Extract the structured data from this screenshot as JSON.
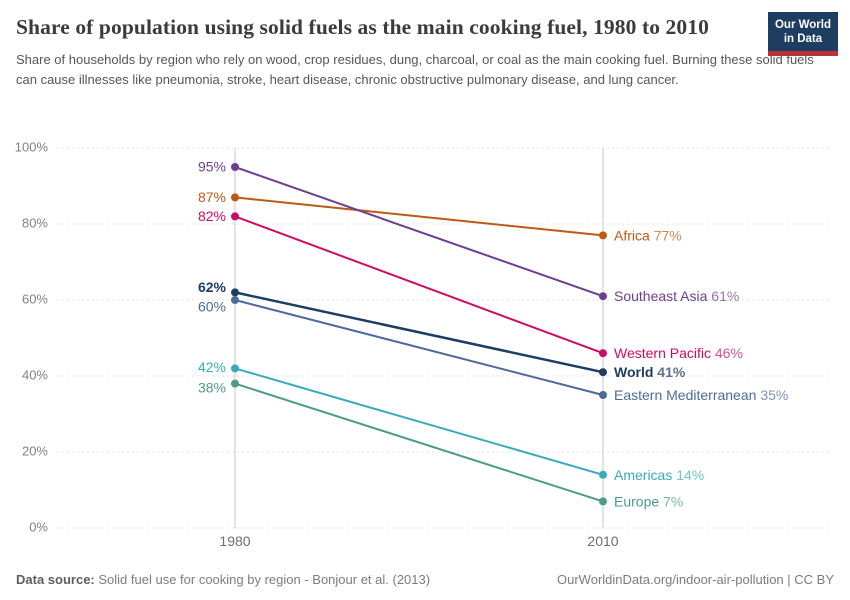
{
  "header": {
    "title": "Share of population using solid fuels as the main cooking fuel, 1980 to 2010",
    "subtitle": "Share of households by region who rely on wood, crop residues, dung, charcoal, or coal as the main cooking fuel. Burning these solid fuels can cause illnesses like pneumonia, stroke, heart disease, chronic obstructive pulmonary disease, and lung cancer.",
    "logo": {
      "line1": "Our World",
      "line2": "in Data"
    },
    "logo_colors": {
      "background": "#1d3d63",
      "underline": "#bc323c"
    }
  },
  "chart_data": {
    "type": "line",
    "x": [
      1980,
      2010
    ],
    "x_tick_labels": [
      "1980",
      "2010"
    ],
    "ylim": [
      0,
      100
    ],
    "y_ticks": [
      0,
      20,
      40,
      60,
      80,
      100
    ],
    "y_tick_labels": [
      "0%",
      "20%",
      "40%",
      "60%",
      "80%",
      "100%"
    ],
    "grid": "dashed-horizontal",
    "legend_position": "end-of-line-labels",
    "series": [
      {
        "name": "Africa",
        "values": [
          87,
          77
        ],
        "start_label": "87%",
        "end_value_label": "77%",
        "color": "#be5915"
      },
      {
        "name": "Southeast Asia",
        "values": [
          95,
          61
        ],
        "start_label": "95%",
        "end_value_label": "61%",
        "color": "#6d3e91"
      },
      {
        "name": "Western Pacific",
        "values": [
          82,
          46
        ],
        "start_label": "82%",
        "end_value_label": "46%",
        "color": "#cf0a66"
      },
      {
        "name": "World",
        "values": [
          62,
          41
        ],
        "start_label": "62%",
        "end_value_label": "41%",
        "color": "#1d3d63",
        "bold": true
      },
      {
        "name": "Eastern Mediterranean",
        "values": [
          60,
          35
        ],
        "start_label": "60%",
        "end_value_label": "35%",
        "color": "#4c6a9c"
      },
      {
        "name": "Americas",
        "values": [
          42,
          14
        ],
        "start_label": "42%",
        "end_value_label": "14%",
        "color": "#38aaba"
      },
      {
        "name": "Europe",
        "values": [
          38,
          7
        ],
        "start_label": "38%",
        "end_value_label": "7%",
        "color": "#4c9c85"
      }
    ]
  },
  "footer": {
    "source_label": "Data source:",
    "source_text": "Solid fuel use for cooking by region - Bonjour et al. (2013)",
    "link_text": "OurWorldinData.org/indoor-air-pollution | CC BY"
  }
}
